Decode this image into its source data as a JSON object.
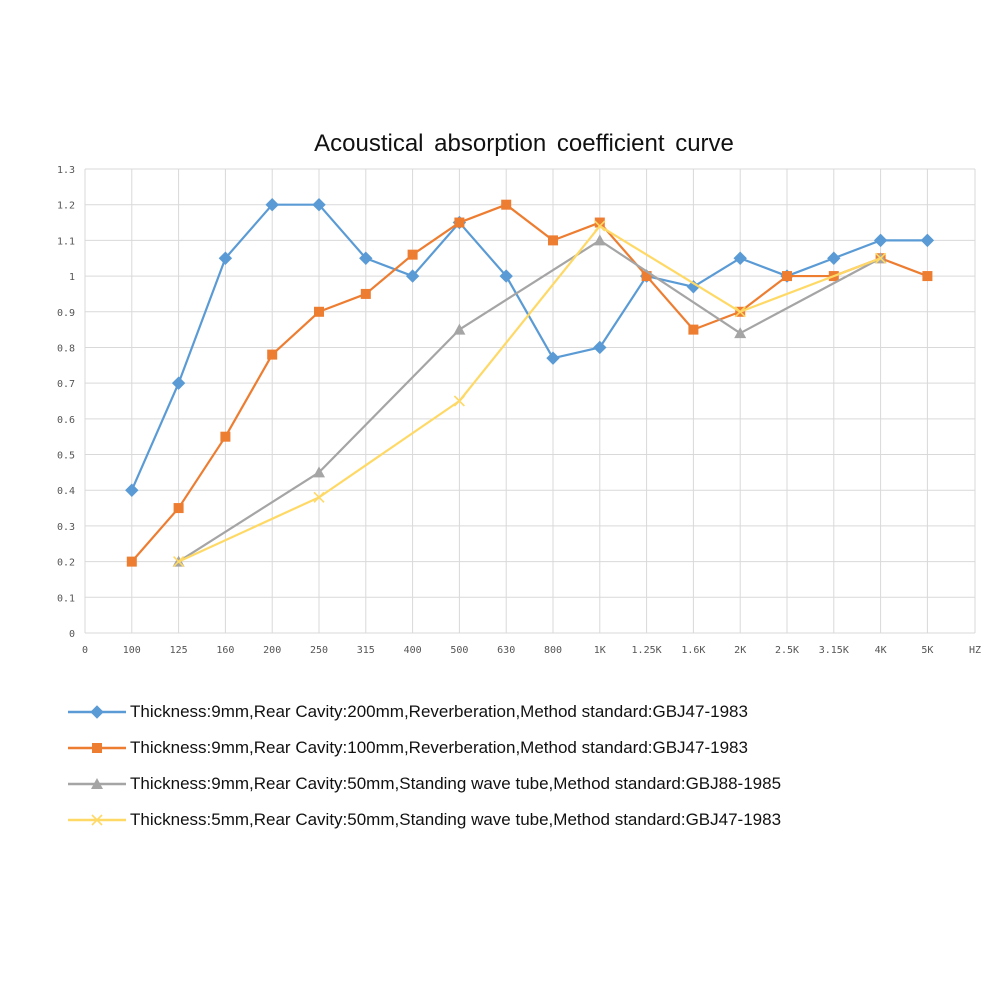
{
  "chart_data": {
    "type": "line",
    "title": "Acoustical absorption coefficient curve",
    "xlabel": "",
    "ylabel": "",
    "x_unit_label": "HZ",
    "categories": [
      "0",
      "100",
      "125",
      "160",
      "200",
      "250",
      "315",
      "400",
      "500",
      "630",
      "800",
      "1K",
      "1.25K",
      "1.6K",
      "2K",
      "2.5K",
      "3.15K",
      "4K",
      "5K"
    ],
    "ylim": [
      0,
      1.3
    ],
    "yticks": [
      "0",
      "0.1",
      "0.2",
      "0.3",
      "0.4",
      "0.5",
      "0.6",
      "0.7",
      "0.8",
      "0.9",
      "1",
      "1.1",
      "1.2",
      "1.3"
    ],
    "grid": true,
    "legend_position": "bottom",
    "series": [
      {
        "name": "Thickness:9mm,Rear Cavity:200mm,Reverberation,Method standard:GBJ47-1983",
        "color": "#5B9BD5",
        "marker": "diamond",
        "x": [
          "100",
          "125",
          "160",
          "200",
          "250",
          "315",
          "400",
          "500",
          "630",
          "800",
          "1K",
          "1.25K",
          "1.6K",
          "2K",
          "2.5K",
          "3.15K",
          "4K",
          "5K"
        ],
        "values": [
          0.4,
          0.7,
          1.05,
          1.2,
          1.2,
          1.05,
          1.0,
          1.15,
          1.0,
          0.77,
          0.8,
          1.0,
          0.97,
          1.05,
          1.0,
          1.05,
          1.1,
          1.1
        ]
      },
      {
        "name": "Thickness:9mm,Rear Cavity:100mm,Reverberation,Method standard:GBJ47-1983",
        "color": "#ED7D31",
        "marker": "square",
        "x": [
          "100",
          "125",
          "160",
          "200",
          "250",
          "315",
          "400",
          "500",
          "630",
          "800",
          "1K",
          "1.25K",
          "1.6K",
          "2K",
          "2.5K",
          "3.15K",
          "4K",
          "5K"
        ],
        "values": [
          0.2,
          0.35,
          0.55,
          0.78,
          0.9,
          0.95,
          1.06,
          1.15,
          1.2,
          1.1,
          1.15,
          1.0,
          0.85,
          0.9,
          1.0,
          1.0,
          1.05,
          1.0
        ]
      },
      {
        "name": "Thickness:9mm,Rear Cavity:50mm,Standing wave tube,Method standard:GBJ88-1985",
        "color": "#A5A5A5",
        "marker": "triangle",
        "x": [
          "125",
          "250",
          "500",
          "1K",
          "2K",
          "4K"
        ],
        "values": [
          0.2,
          0.45,
          0.85,
          1.1,
          0.84,
          1.05
        ]
      },
      {
        "name": "Thickness:5mm,Rear Cavity:50mm,Standing wave tube,Method standard:GBJ47-1983",
        "color": "#FFD966",
        "marker": "x",
        "x": [
          "125",
          "250",
          "500",
          "1K",
          "2K",
          "4K"
        ],
        "values": [
          0.2,
          0.38,
          0.65,
          1.14,
          0.9,
          1.05
        ]
      }
    ]
  }
}
